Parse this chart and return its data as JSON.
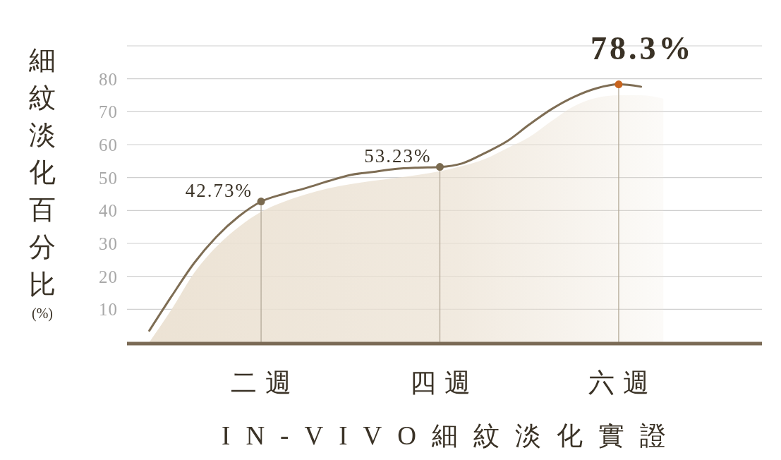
{
  "chart_data": {
    "type": "line",
    "title": "IN-VIVO細紋淡化實證",
    "ylabel": "細紋淡化百分比(%)",
    "categories": [
      null,
      null,
      null,
      null,
      null,
      null,
      "二週",
      null,
      null,
      null,
      null,
      null,
      null,
      null,
      "四週",
      null,
      null,
      null,
      null,
      null,
      null,
      null,
      "六週",
      null,
      null,
      null,
      null,
      null,
      null
    ],
    "ylim": [
      0,
      90
    ],
    "yticks": [
      10,
      20,
      30,
      40,
      50,
      60,
      70,
      80,
      {
        "value": 90,
        "label": null
      }
    ],
    "grid": "y",
    "series": [
      {
        "type": "area",
        "color": "#ebe1d2",
        "values": [
          null,
          0,
          10,
          21,
          29,
          35,
          39.6,
          42.6,
          44.9,
          46.7,
          48,
          49,
          49.9,
          50.8,
          51.9,
          53.5,
          55.6,
          58.9,
          62.3,
          67.2,
          71.7,
          74.2,
          75,
          75,
          74,
          null,
          null,
          null,
          null
        ]
      },
      {
        "color": "#7e6d54",
        "values": [
          null,
          3.5,
          14,
          24,
          32,
          38.2,
          42.7,
          45,
          46.8,
          48.9,
          50.8,
          51.7,
          52.6,
          53,
          53.2,
          54.3,
          57.4,
          61,
          66.1,
          70.8,
          74.5,
          77.1,
          78.3,
          77.6,
          null,
          null,
          null,
          null,
          null
        ]
      },
      {
        "type": "lollipop",
        "marker": "circle",
        "colors": [
          null,
          null,
          null,
          null,
          null,
          null,
          "#7a6a4f",
          null,
          null,
          null,
          null,
          null,
          null,
          null,
          "#7a6a4f",
          null,
          null,
          null,
          null,
          null,
          null,
          null,
          "#c8641e",
          null,
          null,
          null,
          null,
          null,
          null
        ],
        "values": [
          null,
          null,
          null,
          null,
          null,
          null,
          42.73,
          null,
          null,
          null,
          null,
          null,
          null,
          null,
          53.23,
          null,
          null,
          null,
          null,
          null,
          null,
          null,
          78.3,
          null,
          null,
          null,
          null,
          null,
          null
        ],
        "value_labels": [
          null,
          null,
          null,
          null,
          null,
          null,
          "42.73%",
          null,
          null,
          null,
          null,
          null,
          null,
          null,
          "53.23%",
          null,
          null,
          null,
          null,
          null,
          null,
          null,
          "78.3%",
          null,
          null,
          null,
          null,
          null,
          null
        ]
      }
    ]
  }
}
